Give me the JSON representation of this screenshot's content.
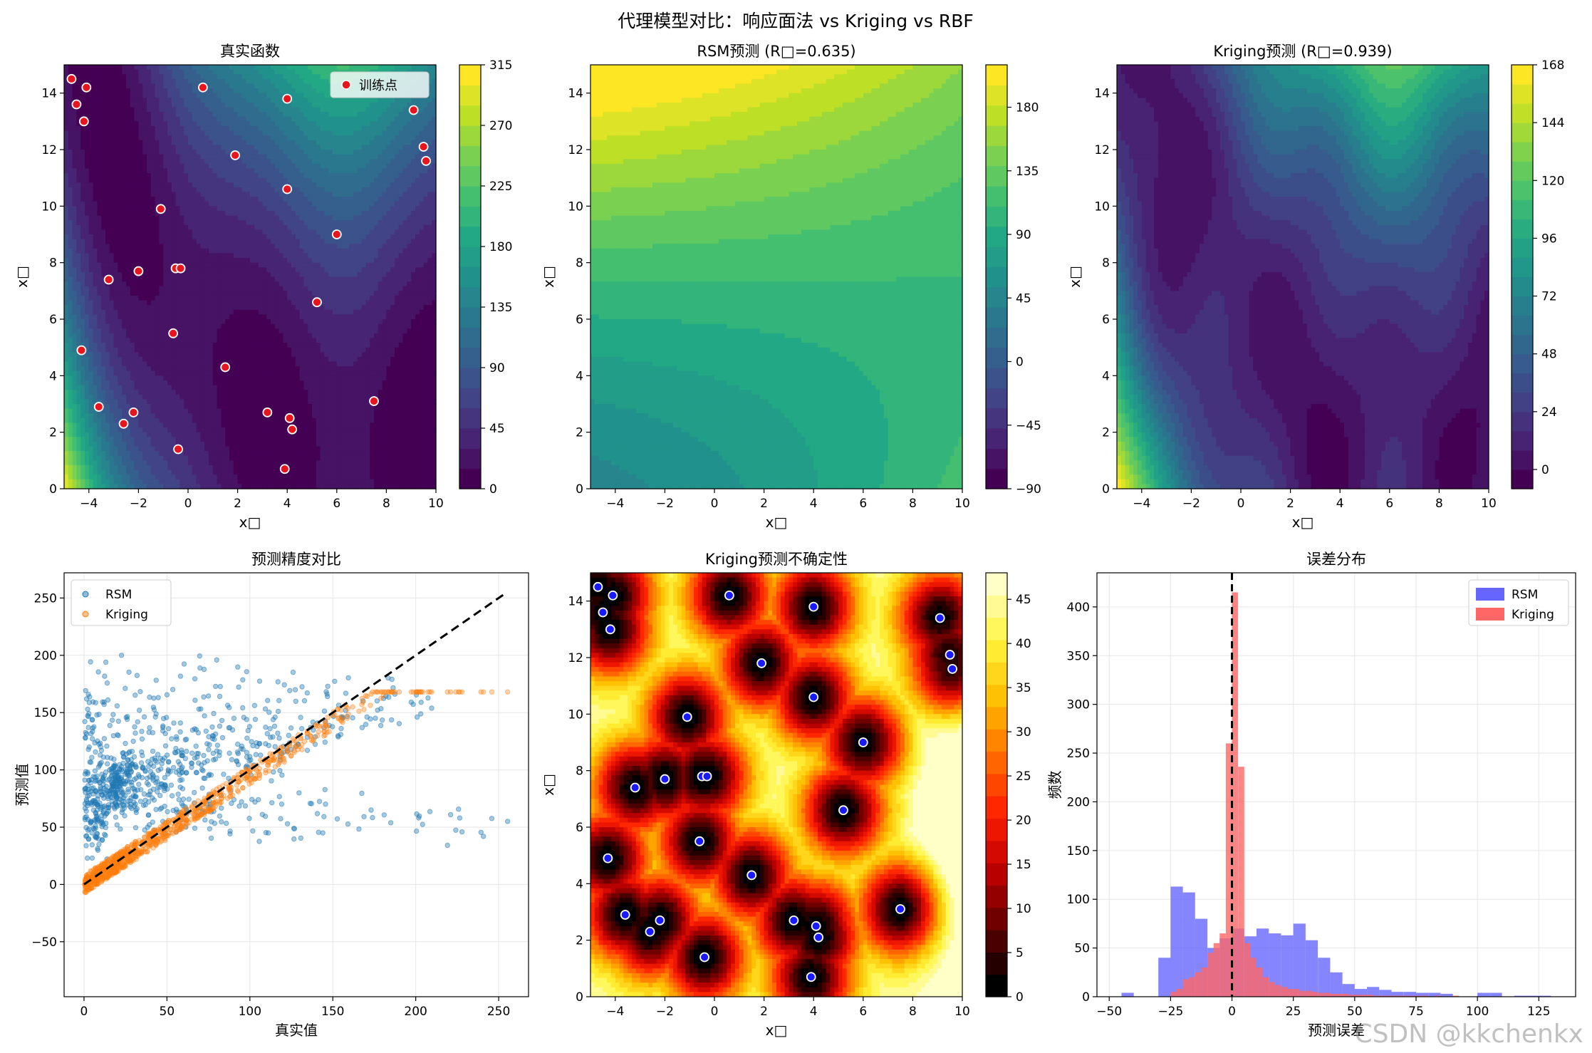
{
  "suptitle": "代理模型对比：响应面法 vs Kriging vs RBF",
  "watermark": "CSDN @kkchenkx",
  "colors": {
    "training_point": "#e8141e",
    "rsm": "#1f77b4",
    "kriging": "#ff7f0e",
    "hist_rsm": "#6666ff",
    "hist_kriging": "#ff6666",
    "ref_line": "#000000"
  },
  "training_points": {
    "x": [
      -4.7,
      -4.5,
      -4.1,
      -4.2,
      -4.3,
      -3.6,
      -3.2,
      -2.6,
      -2.2,
      -2.0,
      -1.1,
      -0.6,
      -0.5,
      -0.4,
      -0.3,
      0.6,
      1.5,
      1.9,
      3.2,
      3.9,
      4.0,
      4.0,
      4.1,
      4.2,
      5.2,
      6.0,
      7.5,
      9.1,
      9.5,
      9.6
    ],
    "y": [
      14.5,
      13.6,
      14.2,
      13.0,
      4.9,
      2.9,
      7.4,
      2.3,
      2.7,
      7.7,
      9.9,
      5.5,
      7.8,
      1.4,
      7.8,
      14.2,
      4.3,
      11.8,
      2.7,
      0.7,
      13.8,
      10.6,
      2.5,
      2.1,
      6.6,
      9.0,
      3.1,
      13.4,
      12.1,
      11.6
    ]
  },
  "chart_data": [
    {
      "type": "contour",
      "title": "真实函数",
      "xlabel": "x□",
      "ylabel": "x□",
      "xlim": [
        -5,
        10
      ],
      "ylim": [
        0,
        15
      ],
      "xticks": [
        "−4",
        "−2",
        "0",
        "2",
        "4",
        "6",
        "8",
        "10"
      ],
      "yticks": [
        "0",
        "2",
        "4",
        "6",
        "8",
        "10",
        "12",
        "14"
      ],
      "colormap": "viridis",
      "colorbar_range": [
        0,
        315
      ],
      "colorbar_ticks": [
        "0",
        "45",
        "90",
        "135",
        "180",
        "225",
        "270",
        "315"
      ],
      "legend": "训练点",
      "legend_position": "top-right"
    },
    {
      "type": "contour",
      "title": "RSM预测 (R□=0.635)",
      "xlabel": "x□",
      "ylabel": "x□",
      "xlim": [
        -5,
        10
      ],
      "ylim": [
        0,
        15
      ],
      "xticks": [
        "−4",
        "−2",
        "0",
        "2",
        "4",
        "6",
        "8",
        "10"
      ],
      "yticks": [
        "0",
        "2",
        "4",
        "6",
        "8",
        "10",
        "12",
        "14"
      ],
      "colormap": "viridis",
      "colorbar_range": [
        -90,
        210
      ],
      "colorbar_ticks": [
        "−90",
        "−45",
        "0",
        "45",
        "90",
        "135",
        "180"
      ]
    },
    {
      "type": "contour",
      "title": "Kriging预测 (R□=0.939)",
      "xlabel": "x□",
      "ylabel": "x□",
      "xlim": [
        -5,
        10
      ],
      "ylim": [
        0,
        15
      ],
      "xticks": [
        "−4",
        "−2",
        "0",
        "2",
        "4",
        "6",
        "8",
        "10"
      ],
      "yticks": [
        "0",
        "2",
        "4",
        "6",
        "8",
        "10",
        "12",
        "14"
      ],
      "colormap": "viridis",
      "colorbar_range": [
        -8,
        168
      ],
      "colorbar_ticks": [
        "0",
        "24",
        "48",
        "72",
        "96",
        "120",
        "144",
        "168"
      ]
    },
    {
      "type": "scatter",
      "title": "预测精度对比",
      "xlabel": "真实值",
      "ylabel": "预测值",
      "xlim": [
        -12,
        268
      ],
      "ylim": [
        -98,
        272
      ],
      "xticks": [
        "0",
        "50",
        "100",
        "150",
        "200",
        "250"
      ],
      "yticks": [
        "−50",
        "0",
        "50",
        "100",
        "150",
        "200",
        "250"
      ],
      "grid": true,
      "legend_position": "top-left",
      "series": [
        {
          "name": "RSM",
          "color": "#1f77b4"
        },
        {
          "name": "Kriging",
          "color": "#ff7f0e"
        }
      ],
      "reference_line": {
        "x": [
          0,
          255
        ],
        "y": [
          0,
          255
        ],
        "style": "dashed"
      }
    },
    {
      "type": "contour",
      "title": "Kriging预测不确定性",
      "xlabel": "x□",
      "ylabel": "x□",
      "xlim": [
        -5,
        10
      ],
      "ylim": [
        0,
        15
      ],
      "xticks": [
        "−4",
        "−2",
        "0",
        "2",
        "4",
        "6",
        "8",
        "10"
      ],
      "yticks": [
        "0",
        "2",
        "4",
        "6",
        "8",
        "10",
        "12",
        "14"
      ],
      "colormap": "hot",
      "colorbar_range": [
        0,
        48
      ],
      "colorbar_ticks": [
        "0",
        "5",
        "10",
        "15",
        "20",
        "25",
        "30",
        "35",
        "40",
        "45"
      ]
    },
    {
      "type": "histogram",
      "title": "误差分布",
      "xlabel": "预测误差",
      "ylabel": "频数",
      "xlim": [
        -55,
        140
      ],
      "ylim": [
        0,
        435
      ],
      "xticks": [
        "−50",
        "−25",
        "0",
        "25",
        "50",
        "75",
        "100",
        "125"
      ],
      "yticks": [
        "0",
        "50",
        "100",
        "150",
        "200",
        "250",
        "300",
        "350",
        "400"
      ],
      "grid": true,
      "legend_position": "top-right",
      "vline_x": 0,
      "series": [
        {
          "name": "RSM",
          "color": "#6666ff",
          "bin_edges": [
            -50,
            -45,
            -40,
            -35,
            -30,
            -25,
            -20,
            -15,
            -10,
            -5,
            0,
            5,
            10,
            15,
            20,
            25,
            30,
            35,
            40,
            45,
            50,
            55,
            60,
            65,
            70,
            75,
            80,
            85,
            90,
            95,
            100,
            105,
            110,
            115,
            120,
            125,
            130,
            135
          ],
          "counts": [
            0,
            4,
            0,
            0,
            40,
            113,
            107,
            80,
            50,
            60,
            70,
            62,
            70,
            65,
            63,
            75,
            58,
            40,
            25,
            13,
            8,
            10,
            7,
            5,
            5,
            4,
            4,
            3,
            0,
            0,
            4,
            4,
            0,
            1,
            1,
            1,
            0
          ]
        },
        {
          "name": "Kriging",
          "color": "#ff6666",
          "bin_edges": [
            -25,
            -22.5,
            -20,
            -17.5,
            -15,
            -12.5,
            -10,
            -7.5,
            -5,
            -2.5,
            0,
            2.5,
            5,
            7.5,
            10,
            12.5,
            15,
            17.5,
            20,
            22.5,
            25,
            27.5,
            30,
            32.5,
            35,
            37.5,
            40,
            42.5,
            45,
            47.5,
            50,
            52.5,
            55,
            57.5,
            60,
            62.5,
            65,
            67.5,
            70,
            72.5,
            75,
            77.5,
            80,
            82.5,
            85,
            87.5,
            90,
            92.5,
            95,
            97.5,
            100
          ],
          "counts": [
            5,
            8,
            18,
            20,
            25,
            30,
            45,
            55,
            65,
            260,
            415,
            236,
            55,
            40,
            30,
            20,
            15,
            12,
            10,
            8,
            8,
            6,
            6,
            5,
            4,
            4,
            3,
            3,
            3,
            2,
            2,
            2,
            2,
            1,
            1,
            1,
            1,
            1,
            1,
            1,
            1,
            1,
            0,
            1,
            0,
            0,
            1,
            0,
            0,
            0
          ]
        }
      ]
    }
  ]
}
